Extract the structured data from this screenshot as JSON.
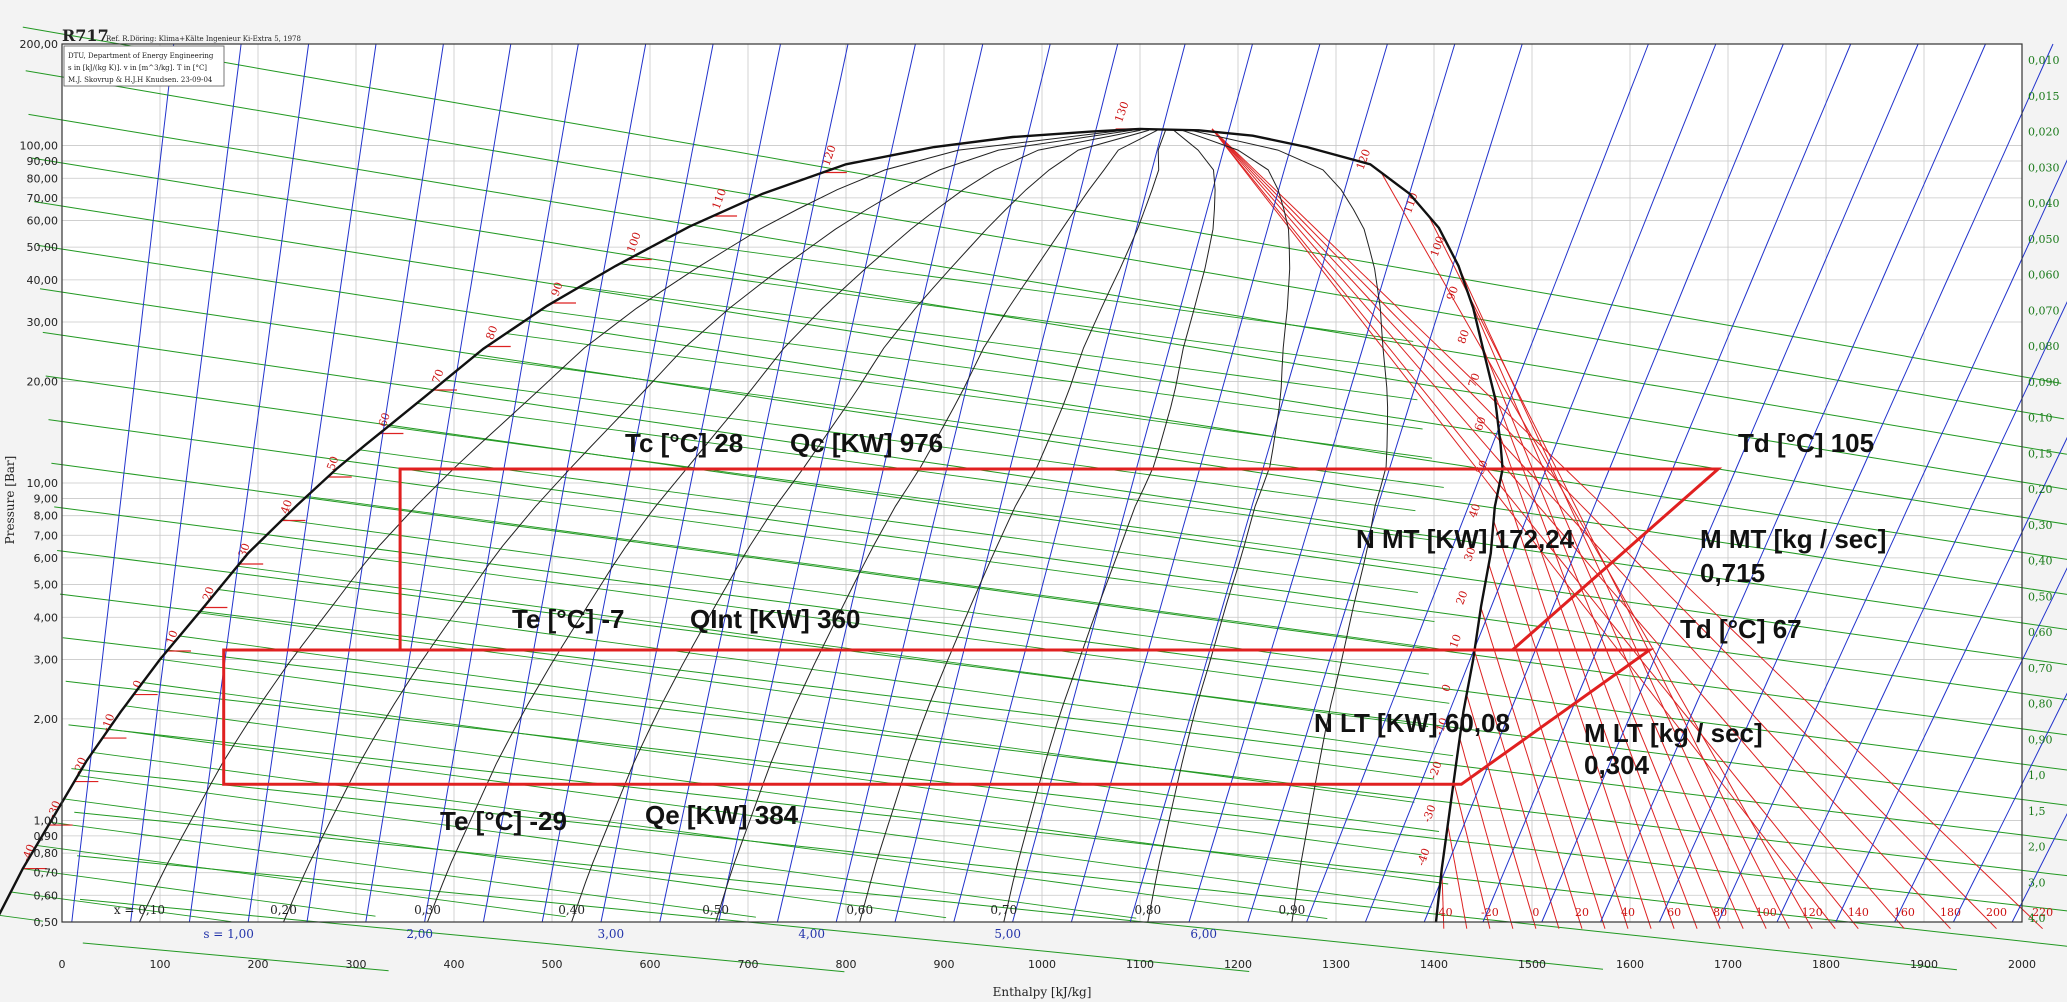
{
  "chart_data": {
    "type": "line",
    "title": "R717",
    "subtitle": "Ref. R.Döring: Klima+Kälte Ingenieur Ki-Extra 5, 1978",
    "header_lines": [
      "DTU, Department of Energy Engineering",
      "s in [kJ/(kg K)]. v in [m^3/kg]. T in [°C]",
      "M.J. Skovrup & H.J.H Knudsen. 23-09-04"
    ],
    "xlabel": "Enthalpy [kJ/kg]",
    "ylabel": "Pressure [Bar]",
    "xlim": [
      0,
      2000
    ],
    "ylim": [
      0.5,
      200
    ],
    "yscale": "log",
    "x_ticks": [
      0,
      100,
      200,
      300,
      400,
      500,
      600,
      700,
      800,
      900,
      1000,
      1100,
      1200,
      1300,
      1400,
      1500,
      1600,
      1700,
      1800,
      1900,
      2000
    ],
    "x_tick_labels": [
      "0",
      "100",
      "200",
      "300",
      "400",
      "500",
      "600",
      "700",
      "800",
      "900",
      "1000",
      "1100",
      "1200",
      "1300",
      "1400",
      "1500",
      "1600",
      "1700",
      "1800",
      "1900",
      "2000"
    ],
    "y_ticks": [
      200,
      100,
      90,
      80,
      70,
      60,
      50,
      40,
      30,
      20,
      10,
      9,
      8,
      7,
      6,
      5,
      4,
      3,
      2,
      1,
      0.9,
      0.8,
      0.7,
      0.6,
      0.5
    ],
    "y_tick_labels": [
      "200,00",
      "100,00",
      "90,00",
      "80,00",
      "70,00",
      "60,00",
      "50,00",
      "40,00",
      "30,00",
      "20,00",
      "10,00",
      "9,00",
      "8,00",
      "7,00",
      "6,00",
      "5,00",
      "4,00",
      "3,00",
      "2,00",
      "1,00",
      "0,90",
      "0,80",
      "0,70",
      "0,60",
      "0,50"
    ],
    "quality_labels": [
      {
        "x": 0.1,
        "label": "x = 0,10"
      },
      {
        "x": 0.2,
        "label": "0,20"
      },
      {
        "x": 0.3,
        "label": "0,30"
      },
      {
        "x": 0.4,
        "label": "0,40"
      },
      {
        "x": 0.5,
        "label": "0,50"
      },
      {
        "x": 0.6,
        "label": "0,60"
      },
      {
        "x": 0.7,
        "label": "0,70"
      },
      {
        "x": 0.8,
        "label": "0,80"
      },
      {
        "x": 0.9,
        "label": "0,90"
      }
    ],
    "entropy_labels": [
      "s = 1,00",
      "2,00",
      "3,00",
      "4,00",
      "5,00",
      "6,00"
    ],
    "superheat_temp_labels": [
      "-40",
      "-20",
      "0",
      "20",
      "40",
      "60",
      "80",
      "100",
      "120",
      "140",
      "160",
      "180",
      "200",
      "220"
    ],
    "liquid_temp_labels": [
      {
        "t": -40,
        "label": "-40"
      },
      {
        "t": -30,
        "label": "-30"
      },
      {
        "t": -20,
        "label": "-20"
      },
      {
        "t": -10,
        "label": "-10"
      },
      {
        "t": 0,
        "label": "0"
      },
      {
        "t": 10,
        "label": "10"
      },
      {
        "t": 20,
        "label": "20"
      },
      {
        "t": 30,
        "label": "30"
      },
      {
        "t": 40,
        "label": "40"
      },
      {
        "t": 50,
        "label": "50"
      },
      {
        "t": 60,
        "label": "60"
      },
      {
        "t": 70,
        "label": "70"
      },
      {
        "t": 80,
        "label": "80"
      },
      {
        "t": 90,
        "label": "90"
      },
      {
        "t": 100,
        "label": "100"
      },
      {
        "t": 110,
        "label": "110"
      },
      {
        "t": 120,
        "label": "120"
      },
      {
        "t": 130,
        "label": "130"
      }
    ],
    "vapor_temp_labels": [
      {
        "t": -40,
        "label": "-40"
      },
      {
        "t": -30,
        "label": "-30"
      },
      {
        "t": -20,
        "label": "-20"
      },
      {
        "t": -10,
        "label": "-10"
      },
      {
        "t": 0,
        "label": "0"
      },
      {
        "t": 10,
        "label": "10"
      },
      {
        "t": 20,
        "label": "20"
      },
      {
        "t": 30,
        "label": "30"
      },
      {
        "t": 40,
        "label": "40"
      },
      {
        "t": 50,
        "label": "50"
      },
      {
        "t": 60,
        "label": "60"
      },
      {
        "t": 70,
        "label": "70"
      },
      {
        "t": 80,
        "label": "80"
      },
      {
        "t": 90,
        "label": "90"
      },
      {
        "t": 100,
        "label": "100"
      },
      {
        "t": 110,
        "label": "110"
      },
      {
        "t": 120,
        "label": "120"
      }
    ],
    "volume_labels_right": [
      "0,010",
      "0,015",
      "0,020",
      "0,030",
      "0,040",
      "0,050",
      "0,060",
      "0,070",
      "0,080",
      "0,090",
      "0,10",
      "0,15",
      "0,20",
      "0,30",
      "0,40",
      "0,50",
      "0,60",
      "0,70",
      "0,80",
      "0,90",
      "1,0",
      "1,5",
      "2,0",
      "3,0",
      "4,0"
    ],
    "saturation_liquid": [
      [
        -68,
        0.5
      ],
      [
        -40,
        0.72
      ],
      [
        25,
        1.5
      ],
      [
        60,
        2.1
      ],
      [
        100,
        3.0
      ],
      [
        145,
        4.3
      ],
      [
        190,
        6.2
      ],
      [
        240,
        8.6
      ],
      [
        280,
        11.0
      ],
      [
        310,
        13.0
      ],
      [
        370,
        18.0
      ],
      [
        430,
        25.0
      ],
      [
        495,
        33.5
      ],
      [
        565,
        44.0
      ],
      [
        640,
        57.5
      ],
      [
        715,
        72.0
      ],
      [
        800,
        88.0
      ],
      [
        890,
        99.0
      ],
      [
        970,
        106.0
      ],
      [
        1050,
        110.0
      ],
      [
        1100,
        112.0
      ]
    ],
    "saturation_vapor": [
      [
        1100,
        112.0
      ],
      [
        1160,
        111.0
      ],
      [
        1215,
        107.0
      ],
      [
        1270,
        99.0
      ],
      [
        1335,
        88.0
      ],
      [
        1375,
        72.0
      ],
      [
        1405,
        57.0
      ],
      [
        1425,
        44.0
      ],
      [
        1440,
        33.0
      ],
      [
        1450,
        25.0
      ],
      [
        1462,
        18.0
      ],
      [
        1468,
        13.0
      ],
      [
        1470,
        11.0
      ],
      [
        1462,
        8.5
      ],
      [
        1458,
        6.2
      ],
      [
        1448,
        4.3
      ],
      [
        1440,
        3.0
      ],
      [
        1430,
        2.1
      ],
      [
        1423,
        1.5
      ],
      [
        1408,
        0.72
      ],
      [
        1402,
        0.5
      ]
    ],
    "series": [
      {
        "name": "MT cycle",
        "points": [
          [
            1470,
            11.0
          ],
          [
            1690,
            11.0
          ],
          [
            1480,
            3.2
          ],
          [
            1470,
            3.2
          ],
          [
            345,
            3.2
          ],
          [
            345,
            11.0
          ],
          [
            1470,
            11.0
          ]
        ]
      },
      {
        "name": "LT cycle",
        "points": [
          [
            1410,
            3.2
          ],
          [
            1620,
            3.2
          ],
          [
            1428,
            1.28
          ],
          [
            1418,
            1.28
          ],
          [
            165,
            1.28
          ],
          [
            165,
            3.2
          ],
          [
            1410,
            3.2
          ]
        ]
      }
    ],
    "annotations": [
      {
        "id": "tc",
        "text": "Tc [°C] 28"
      },
      {
        "id": "qc",
        "text": "Qc [KW] 976"
      },
      {
        "id": "td_mt",
        "text": "Td [°C] 105"
      },
      {
        "id": "n_mt",
        "text": "N MT [KW] 172,24"
      },
      {
        "id": "m_mt",
        "text": "M MT [kg / sec]"
      },
      {
        "id": "m_mt_val",
        "text": "0,715"
      },
      {
        "id": "te_mt",
        "text": "Te [°C] -7"
      },
      {
        "id": "qint",
        "text": "QInt [KW] 360"
      },
      {
        "id": "td_lt",
        "text": "Td [°C] 67"
      },
      {
        "id": "n_lt",
        "text": "N LT [KW] 60,08"
      },
      {
        "id": "m_lt",
        "text": "M LT [kg / sec]"
      },
      {
        "id": "m_lt_val",
        "text": "0,304"
      },
      {
        "id": "te_lt",
        "text": "Te [°C] -29"
      },
      {
        "id": "qe",
        "text": "Qe [KW] 384"
      }
    ],
    "grid": true,
    "colors": {
      "saturation": "#111111",
      "cycle": "#e02020",
      "isotherm": "#dd2222",
      "isentrope": "#2233cc",
      "isochore": "#229922",
      "quality": "#222222",
      "grid": "#c8c8c8"
    }
  }
}
